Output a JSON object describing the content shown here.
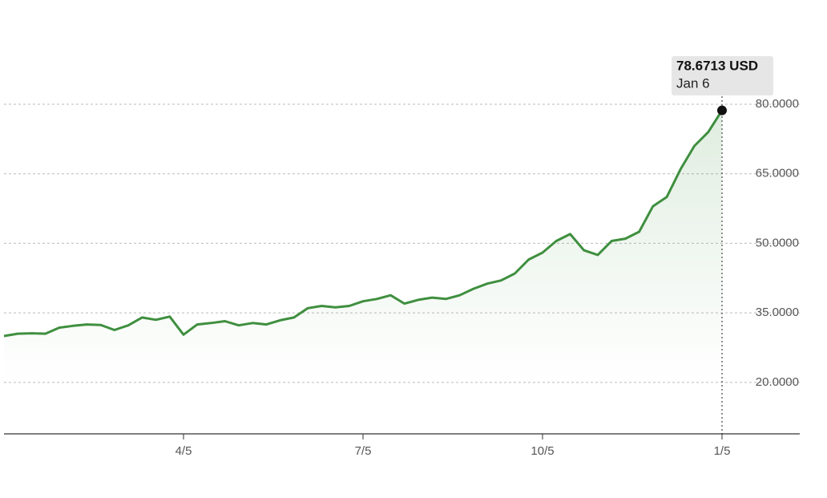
{
  "chart_data": {
    "type": "line",
    "categories": [
      null,
      null,
      null,
      null,
      null,
      null,
      null,
      null,
      null,
      null,
      null,
      null,
      null,
      "4/5",
      null,
      null,
      null,
      null,
      null,
      null,
      null,
      null,
      null,
      null,
      null,
      null,
      "7/5",
      null,
      null,
      null,
      null,
      null,
      null,
      null,
      null,
      null,
      null,
      null,
      null,
      "10/5",
      null,
      null,
      null,
      null,
      null,
      null,
      null,
      null,
      null,
      null,
      null,
      null,
      "1/5"
    ],
    "values": [
      30.0,
      30.5,
      30.6,
      30.5,
      31.8,
      32.2,
      32.5,
      32.4,
      31.3,
      32.3,
      34.0,
      33.5,
      34.2,
      30.3,
      32.5,
      32.8,
      33.2,
      32.3,
      32.8,
      32.5,
      33.4,
      34.0,
      36.0,
      36.5,
      36.2,
      36.5,
      37.5,
      38.0,
      38.8,
      37.0,
      37.8,
      38.3,
      38.0,
      38.8,
      40.2,
      41.3,
      42.0,
      43.5,
      46.5,
      48.0,
      50.5,
      52.0,
      48.5,
      47.5,
      50.5,
      51.0,
      52.5,
      58.0,
      60.0,
      66.0,
      71.0,
      74.0,
      78.6713
    ],
    "color": "#3f8f3f",
    "ylim": [
      8.9,
      80
    ],
    "yticks": [
      {
        "value": 20,
        "label": "20.0000"
      },
      {
        "value": 35,
        "label": "35.0000"
      },
      {
        "value": 50,
        "label": "50.0000"
      },
      {
        "value": 65,
        "label": "65.0000"
      },
      {
        "value": 80,
        "label": "80.0000"
      }
    ],
    "grid": true,
    "tooltip": {
      "label": "78.6713 USD",
      "date": "Jan 6"
    }
  }
}
